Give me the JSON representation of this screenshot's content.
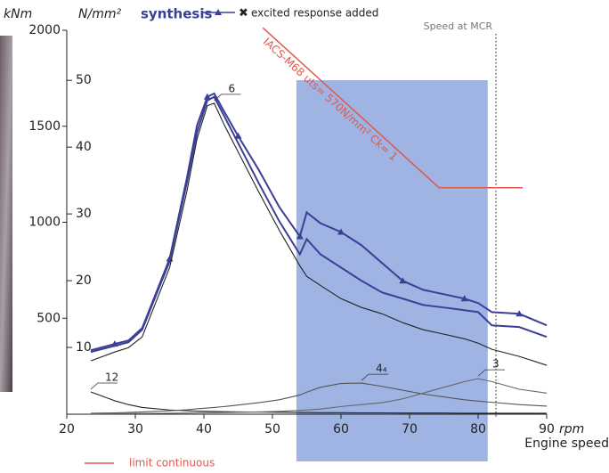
{
  "chart_data": {
    "type": "line",
    "title": "synthesis",
    "ylabel": "kNm",
    "y2label": "N/mm²",
    "xunit": "rpm",
    "xlabel": "Engine speed",
    "xlim": [
      20,
      90
    ],
    "xticks": [
      20,
      30,
      40,
      50,
      60,
      70,
      80,
      90
    ],
    "ylim": [
      0,
      2000
    ],
    "yticks": [
      500,
      1000,
      1500,
      2000
    ],
    "y2lim": [
      0,
      57.5
    ],
    "y2ticks": [
      10,
      20,
      30,
      40,
      50
    ],
    "x": [
      23.5,
      27,
      29,
      31,
      35,
      37.5,
      39,
      40.5,
      41.5,
      43,
      45,
      48,
      51,
      54,
      55,
      57,
      60,
      63,
      66,
      69,
      72,
      75,
      78,
      80,
      82,
      86,
      90
    ],
    "series": [
      {
        "name": "excited response added",
        "legend": true,
        "marker": "triangle",
        "color": "#3b3f96",
        "values": [
          333,
          366,
          384,
          449,
          810,
          1227,
          1505,
          1653,
          1671,
          1574,
          1449,
          1273,
          1079,
          926,
          1051,
          995,
          949,
          880,
          787,
          695,
          648,
          625,
          602,
          579,
          532,
          523,
          463
        ]
      },
      {
        "name": "synthesis",
        "legend": false,
        "color": "#3b3f96",
        "values": [
          324,
          356,
          375,
          440,
          796,
          1204,
          1468,
          1634,
          1653,
          1551,
          1412,
          1204,
          1005,
          833,
          912,
          833,
          764,
          695,
          634,
          602,
          569,
          556,
          542,
          532,
          463,
          454,
          403
        ]
      },
      {
        "name": "6",
        "legend": false,
        "color": "#222222",
        "values": [
          278,
          324,
          347,
          403,
          764,
          1158,
          1435,
          1607,
          1620,
          1505,
          1366,
          1158,
          958,
          773,
          718,
          671,
          602,
          556,
          523,
          477,
          440,
          417,
          393,
          370,
          338,
          301,
          255
        ]
      },
      {
        "name": "12",
        "legend": false,
        "color": "#222222",
        "values": [
          116,
          70,
          50,
          35,
          22,
          18,
          16,
          15,
          14,
          13,
          12,
          11,
          10,
          9,
          9,
          8,
          8,
          7,
          7,
          6,
          6,
          6,
          5,
          5,
          5,
          5,
          5
        ]
      },
      {
        "name": "4₄",
        "legend": false,
        "color": "#555555",
        "values": [
          5,
          7,
          9,
          12,
          18,
          23,
          28,
          32,
          35,
          40,
          48,
          60,
          75,
          100,
          115,
          140,
          160,
          162,
          145,
          125,
          105,
          90,
          75,
          68,
          62,
          50,
          42
        ]
      },
      {
        "name": "3",
        "legend": false,
        "color": "#666666",
        "values": [
          2,
          3,
          3,
          4,
          5,
          6,
          7,
          8,
          8,
          9,
          10,
          12,
          15,
          20,
          22,
          27,
          40,
          50,
          60,
          80,
          110,
          140,
          170,
          185,
          170,
          130,
          110
        ]
      }
    ],
    "limit": {
      "name": "limit continuous",
      "label": "IACS-M68 uts= 570N/mm² Ck= 1",
      "color": "#e0574c",
      "x": [
        48.6,
        74.3,
        86.5
      ],
      "values": [
        2013,
        1180,
        1180
      ]
    },
    "band": {
      "x": [
        53.5,
        81.4
      ],
      "color": "#7f9bd8"
    },
    "mcr": {
      "label": "Speed at MCR",
      "x": 82.6
    }
  }
}
